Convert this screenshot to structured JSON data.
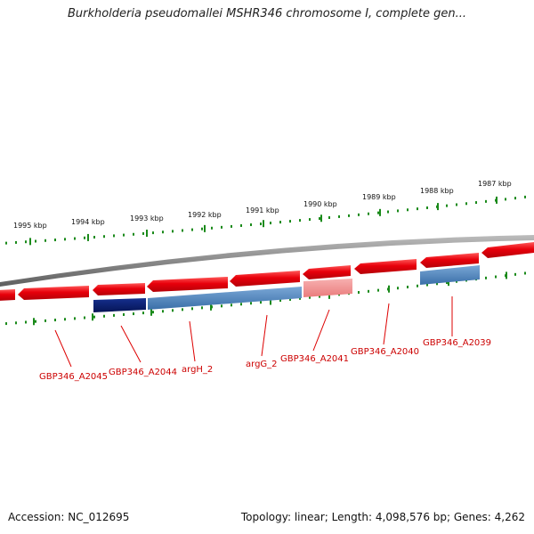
{
  "header": {
    "title": "Burkholderia pseudomallei MSHR346 chromosome I, complete gen..."
  },
  "footer": {
    "accession": "Accession: NC_012695",
    "summary": "Topology: linear; Length: 4,098,576 bp; Genes: 4,262"
  },
  "scale_labels": [
    "1995 kbp",
    "1994 kbp",
    "1993 kbp",
    "1992 kbp",
    "1991 kbp",
    "1990 kbp",
    "1989 kbp",
    "1988 kbp",
    "1987 kbp"
  ],
  "gene_labels": [
    "GBP346_A2045",
    "GBP346_A2044",
    "argH_2",
    "argG_2",
    "GBP346_A2041",
    "GBP346_A2040",
    "GBP346_A2039"
  ],
  "colors": {
    "gene_red": "#e8000b",
    "gene_pink": "#f08a8a",
    "feature_navy": "#0a1f7a",
    "feature_blue": "#4a7fb5",
    "backbone": "#888888",
    "tick_green": "#1a8a1a",
    "label_red": "#cc0000"
  }
}
